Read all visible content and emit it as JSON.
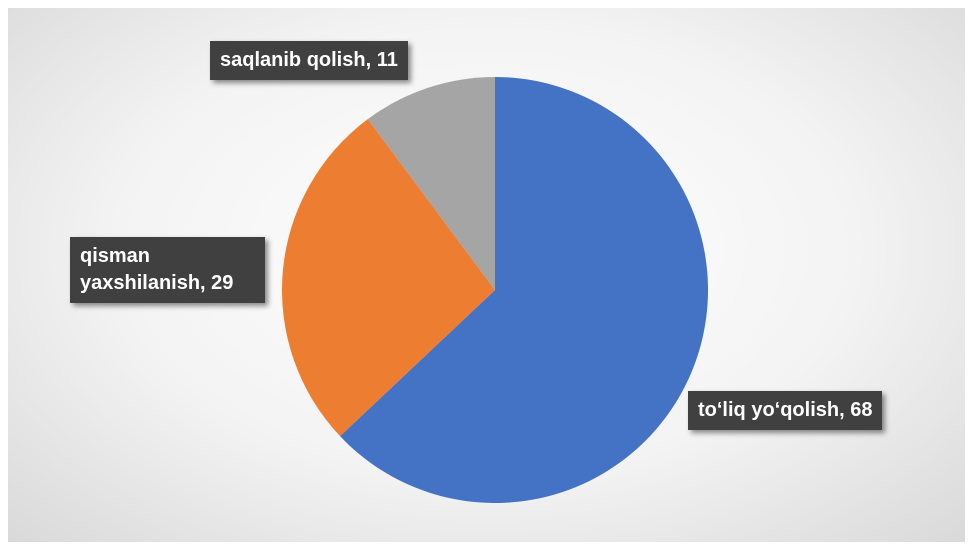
{
  "chart_data": {
    "type": "pie",
    "values": [
      68,
      29,
      11
    ],
    "value_labels": [
      "to‘liq yo‘qolish, 68",
      "qisman yaxshilanish, 29",
      "saqlanib qolish, 11"
    ],
    "colors": [
      "#4472c4",
      "#ed7d31",
      "#a5a5a5"
    ]
  }
}
